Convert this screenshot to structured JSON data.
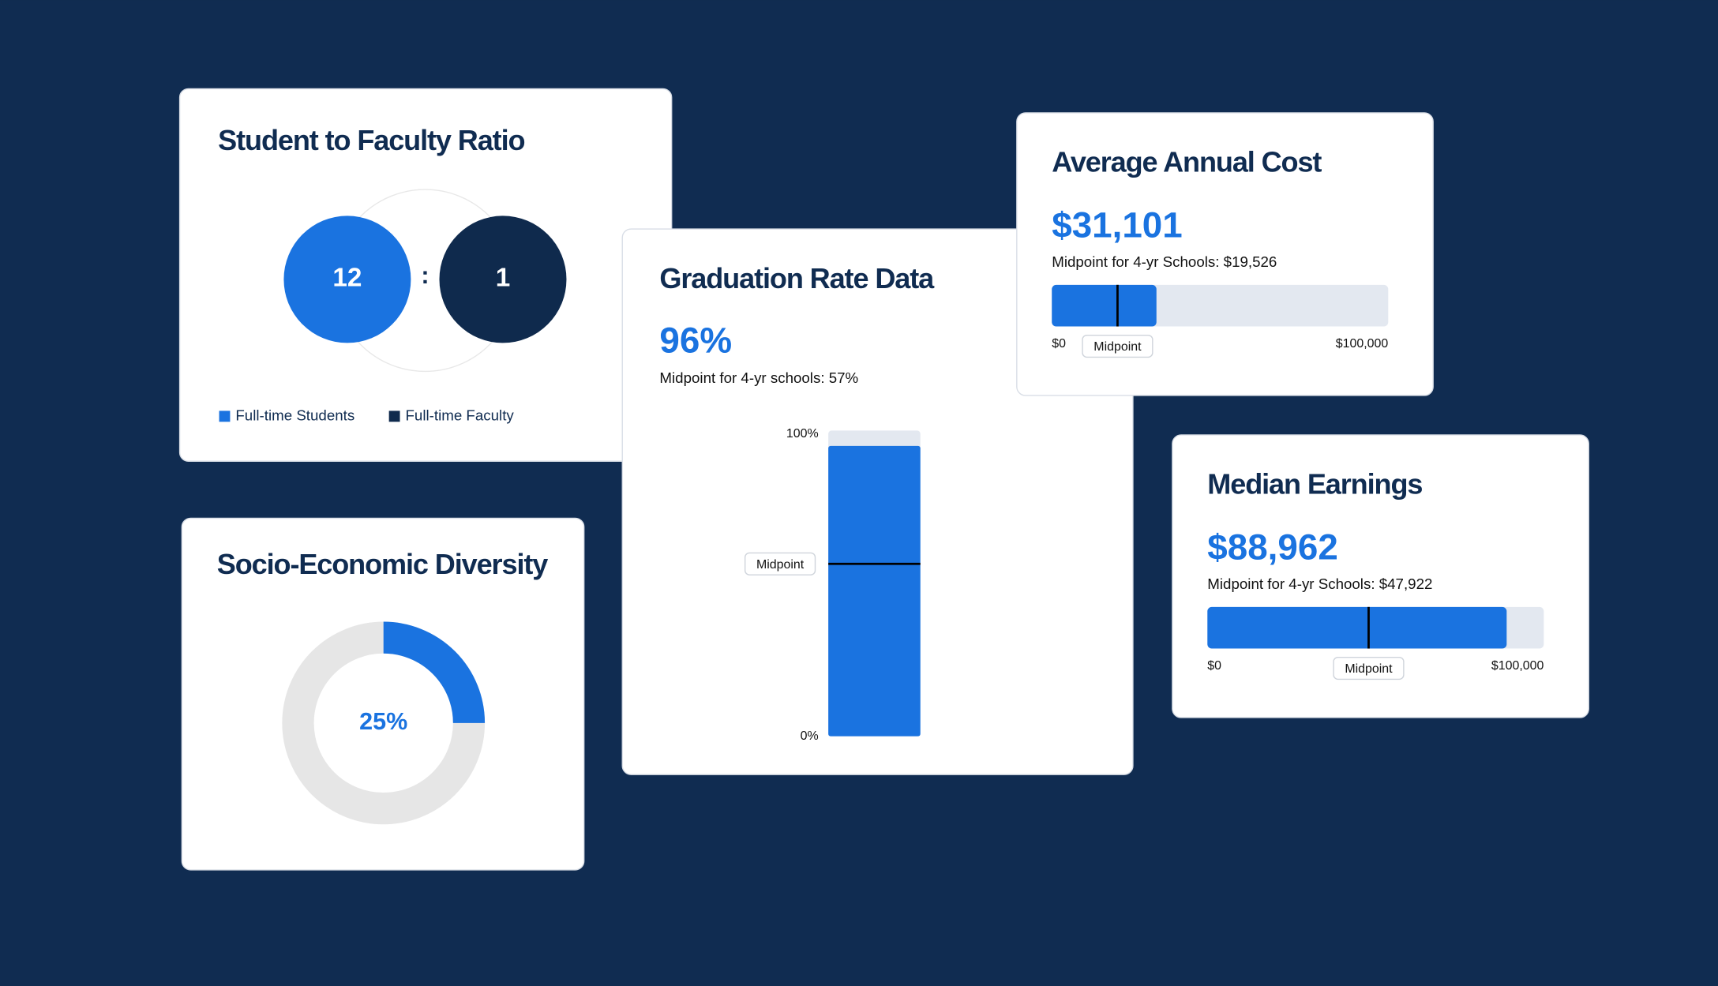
{
  "ratio": {
    "title": "Student to Faculty Ratio",
    "students": 12,
    "separator": ":",
    "faculty": 1,
    "legend": [
      {
        "label": "Full-time Students",
        "color": "#1a73e0"
      },
      {
        "label": "Full-time Faculty",
        "color": "#0f2a4d"
      }
    ]
  },
  "diversity": {
    "title": "Socio-Economic Diversity",
    "value": 25,
    "value_label": "25%",
    "color": "#1a73e0",
    "track_color": "#e6e6e6"
  },
  "graduation": {
    "title": "Graduation Rate Data",
    "value": 96,
    "value_label": "96%",
    "midpoint_text": "Midpoint for 4-yr schools: 57%",
    "midpoint": 57,
    "midpoint_tag": "Midpoint",
    "ylim": [
      0,
      100
    ],
    "yticks": [
      {
        "value": 0,
        "label": "0%"
      },
      {
        "value": 100,
        "label": "100%"
      }
    ],
    "color": "#1a73e0"
  },
  "cost": {
    "title": "Average Annual Cost",
    "value": 31101,
    "value_label": "$31,101",
    "midpoint_text": "Midpoint for 4-yr Schools: $19,526",
    "midpoint": 19526,
    "midpoint_tag": "Midpoint",
    "xlim": [
      0,
      100000
    ],
    "xticks": [
      {
        "value": 0,
        "label": "$0"
      },
      {
        "value": 100000,
        "label": "$100,000"
      }
    ],
    "color": "#1a73e0"
  },
  "earnings": {
    "title": "Median Earnings",
    "value": 88962,
    "value_label": "$88,962",
    "midpoint_text": "Midpoint for 4-yr Schools: $47,922",
    "midpoint": 47922,
    "midpoint_tag": "Midpoint",
    "xlim": [
      0,
      100000
    ],
    "xticks": [
      {
        "value": 0,
        "label": "$0"
      },
      {
        "value": 100000,
        "label": "$100,000"
      }
    ],
    "color": "#1a73e0"
  }
}
